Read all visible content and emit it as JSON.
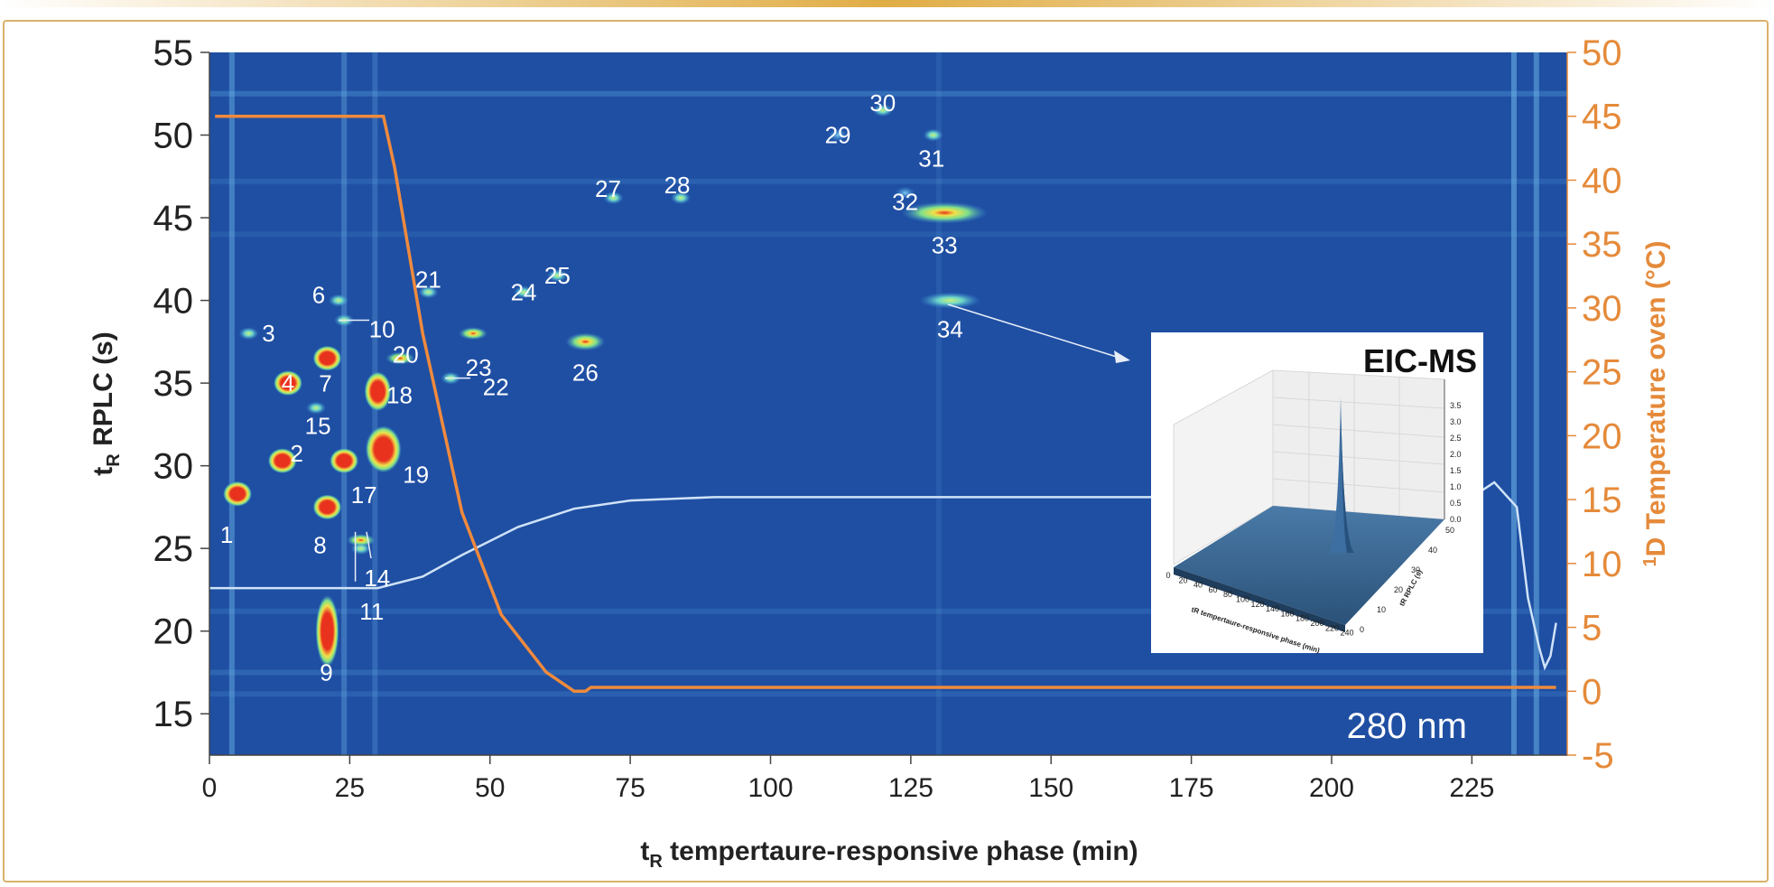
{
  "colors": {
    "plot_background": "#1f4fa3",
    "temperature_line": "#f08a3c",
    "baseline_trace": "#cfe3f7",
    "right_axis": "#e58a3a",
    "frame": "#d8b26a",
    "peak_hot": "#e8321e",
    "peak_warm": "#f0e24a",
    "peak_cool": "#7fe08a"
  },
  "chart_data": {
    "type": "heatmap",
    "title": "",
    "xlabel": "t",
    "xlabel_sub": "R",
    "xlabel_rest": " tempertaure-responsive phase (min)",
    "ylabel": "t",
    "ylabel_sub": "R",
    "ylabel_rest": " RPLC (s)",
    "y2label_sup": "1",
    "y2label": "D Temperature oven (°C)",
    "xlim": [
      0,
      242
    ],
    "ylim": [
      12.5,
      55
    ],
    "y2lim": [
      -5,
      50
    ],
    "xticks": [
      "0",
      "25",
      "50",
      "75",
      "100",
      "125",
      "150",
      "175",
      "200",
      "225"
    ],
    "yticks": [
      "15",
      "20",
      "25",
      "30",
      "35",
      "40",
      "45",
      "50",
      "55"
    ],
    "y2ticks": [
      "-5",
      "0",
      "5",
      "10",
      "15",
      "20",
      "25",
      "30",
      "35",
      "40",
      "45",
      "50"
    ],
    "wavelength_label": "280 nm",
    "temperature_profile": {
      "name": "1D Temperature oven",
      "points": [
        [
          1,
          45
        ],
        [
          31,
          45
        ],
        [
          33,
          41
        ],
        [
          38,
          28
        ],
        [
          45,
          14
        ],
        [
          52,
          6
        ],
        [
          60,
          1.5
        ],
        [
          65,
          0
        ],
        [
          67,
          0
        ],
        [
          68,
          0.3
        ],
        [
          240,
          0.3
        ]
      ]
    },
    "baseline_trace": {
      "points": [
        [
          0,
          22.6
        ],
        [
          30,
          22.6
        ],
        [
          38,
          23.3
        ],
        [
          45,
          24.6
        ],
        [
          55,
          26.3
        ],
        [
          65,
          27.4
        ],
        [
          75,
          27.9
        ],
        [
          90,
          28.1
        ],
        [
          225,
          28.1
        ],
        [
          229,
          29.0
        ],
        [
          233,
          27.5
        ],
        [
          235,
          22.0
        ],
        [
          237,
          19.0
        ],
        [
          238,
          17.8
        ],
        [
          239,
          18.5
        ],
        [
          240,
          20.5
        ]
      ]
    },
    "peaks": [
      {
        "label": "1",
        "x": 5,
        "y": 28.3,
        "intensity": 3
      },
      {
        "label": "2",
        "x": 13,
        "y": 30.3,
        "intensity": 3
      },
      {
        "label": "3",
        "x": 7,
        "y": 38.0,
        "intensity": 1
      },
      {
        "label": "4",
        "x": 14,
        "y": 35.0,
        "intensity": 3
      },
      {
        "label": "6",
        "x": 23,
        "y": 40.0,
        "intensity": 1
      },
      {
        "label": "7",
        "x": 21,
        "y": 36.5,
        "intensity": 3
      },
      {
        "label": "8",
        "x": 21,
        "y": 27.5,
        "intensity": 3
      },
      {
        "label": "9",
        "x": 21,
        "y": 20.0,
        "intensity": 3
      },
      {
        "label": "10",
        "x": 24,
        "y": 38.8,
        "intensity": 1
      },
      {
        "label": "11",
        "x": 27,
        "y": 25.0,
        "intensity": 1
      },
      {
        "label": "14",
        "x": 27,
        "y": 25.5,
        "intensity": 2
      },
      {
        "label": "15",
        "x": 19,
        "y": 33.5,
        "intensity": 1
      },
      {
        "label": "17",
        "x": 24,
        "y": 30.3,
        "intensity": 3
      },
      {
        "label": "18",
        "x": 30,
        "y": 34.5,
        "intensity": 3
      },
      {
        "label": "19",
        "x": 31,
        "y": 31.0,
        "intensity": 3
      },
      {
        "label": "20",
        "x": 34,
        "y": 36.5,
        "intensity": 2
      },
      {
        "label": "21",
        "x": 39,
        "y": 40.5,
        "intensity": 1
      },
      {
        "label": "22",
        "x": 43,
        "y": 35.3,
        "intensity": 1
      },
      {
        "label": "23",
        "x": 47,
        "y": 38.0,
        "intensity": 2
      },
      {
        "label": "24",
        "x": 56,
        "y": 40.5,
        "intensity": 1
      },
      {
        "label": "25",
        "x": 62,
        "y": 41.5,
        "intensity": 1
      },
      {
        "label": "26",
        "x": 67,
        "y": 37.5,
        "intensity": 2
      },
      {
        "label": "27",
        "x": 72,
        "y": 46.2,
        "intensity": 1
      },
      {
        "label": "28",
        "x": 84,
        "y": 46.2,
        "intensity": 1
      },
      {
        "label": "29",
        "x": 112,
        "y": 50.0,
        "intensity": 0
      },
      {
        "label": "30",
        "x": 120,
        "y": 51.5,
        "intensity": 1
      },
      {
        "label": "31",
        "x": 129,
        "y": 50.0,
        "intensity": 1
      },
      {
        "label": "32",
        "x": 124,
        "y": 46.5,
        "intensity": 0
      },
      {
        "label": "33",
        "x": 131,
        "y": 45.3,
        "intensity": 2
      },
      {
        "label": "34",
        "x": 132,
        "y": 40.0,
        "intensity": 1
      }
    ],
    "inset": {
      "title": "EIC-MS",
      "x_axis_label": "tR tempertaure-responsive phase (min)",
      "y_axis_label": "tR RPLC (s)",
      "x_ticks": [
        "0",
        "20",
        "40",
        "60",
        "80",
        "100",
        "120",
        "140",
        "160",
        "180",
        "200",
        "220",
        "240"
      ],
      "y_ticks": [
        "0",
        "10",
        "20",
        "30",
        "40",
        "50"
      ],
      "z_ticks": [
        "0.0",
        "0.5",
        "1.0",
        "1.5",
        "2.0",
        "2.5",
        "3.0",
        "3.5"
      ]
    }
  }
}
